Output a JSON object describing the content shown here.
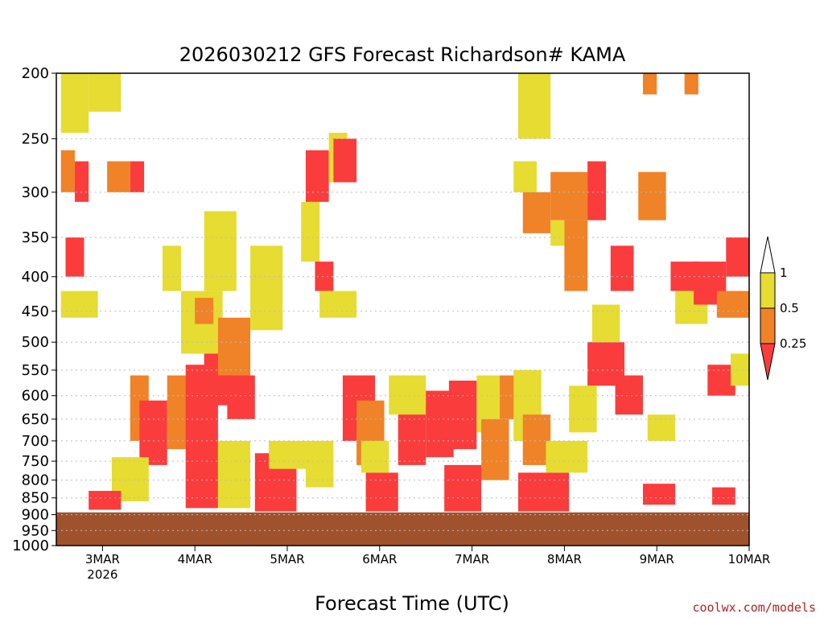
{
  "chart_data": {
    "type": "heatmap",
    "title": "2026030212 GFS Forecast Richardson# KAMA",
    "xlabel": "Forecast Time (UTC)",
    "ylabel": "",
    "y_scale": "log",
    "ylim": [
      1000,
      200
    ],
    "y_ticks": [
      200,
      250,
      300,
      350,
      400,
      450,
      500,
      550,
      600,
      650,
      700,
      750,
      800,
      850,
      900,
      950,
      1000
    ],
    "x_ticks": [
      {
        "label": "3MAR",
        "sub": "2026",
        "day": 3
      },
      {
        "label": "4MAR",
        "sub": "",
        "day": 4
      },
      {
        "label": "5MAR",
        "sub": "",
        "day": 5
      },
      {
        "label": "6MAR",
        "sub": "",
        "day": 6
      },
      {
        "label": "7MAR",
        "sub": "",
        "day": 7
      },
      {
        "label": "8MAR",
        "sub": "",
        "day": 8
      },
      {
        "label": "9MAR",
        "sub": "",
        "day": 9
      },
      {
        "label": "10MAR",
        "sub": "",
        "day": 10
      }
    ],
    "xlim_days": [
      2.5,
      10.0
    ],
    "grid": true,
    "legend": {
      "placement": "right",
      "bins": [
        {
          "label": "1",
          "color": "#ffffff"
        },
        {
          "label": "0.5",
          "color": "#e6dc32"
        },
        {
          "label": "0.25",
          "color": "#f08228"
        },
        {
          "label": "",
          "color": "#fa3c3c"
        }
      ]
    },
    "colors": {
      "ri_lt_025": "#fa3c3c",
      "ri_025_05": "#f08228",
      "ri_05_1": "#e6dc32",
      "ri_gt_1": "#ffffff",
      "terrain": "#a0522d"
    },
    "surface_pressure_hpa": 893,
    "regions": [
      {
        "t": [
          2.55,
          2.85
        ],
        "p": [
          200,
          245
        ],
        "level": "ri_05_1"
      },
      {
        "t": [
          2.85,
          3.2
        ],
        "p": [
          200,
          228
        ],
        "level": "ri_05_1"
      },
      {
        "t": [
          2.55,
          2.7
        ],
        "p": [
          260,
          300
        ],
        "level": "ri_025_05"
      },
      {
        "t": [
          2.7,
          2.85
        ],
        "p": [
          270,
          310
        ],
        "level": "ri_lt_025"
      },
      {
        "t": [
          2.6,
          2.8
        ],
        "p": [
          350,
          400
        ],
        "level": "ri_lt_025"
      },
      {
        "t": [
          2.55,
          2.95
        ],
        "p": [
          420,
          460
        ],
        "level": "ri_05_1"
      },
      {
        "t": [
          3.05,
          3.3
        ],
        "p": [
          270,
          300
        ],
        "level": "ri_025_05"
      },
      {
        "t": [
          3.3,
          3.45
        ],
        "p": [
          270,
          300
        ],
        "level": "ri_lt_025"
      },
      {
        "t": [
          3.3,
          3.5
        ],
        "p": [
          560,
          700
        ],
        "level": "ri_025_05"
      },
      {
        "t": [
          3.4,
          3.7
        ],
        "p": [
          610,
          760
        ],
        "level": "ri_lt_025"
      },
      {
        "t": [
          3.1,
          3.5
        ],
        "p": [
          740,
          860
        ],
        "level": "ri_05_1"
      },
      {
        "t": [
          2.85,
          3.2
        ],
        "p": [
          830,
          885
        ],
        "level": "ri_lt_025"
      },
      {
        "t": [
          3.65,
          3.85
        ],
        "p": [
          360,
          420
        ],
        "level": "ri_05_1"
      },
      {
        "t": [
          3.7,
          4.2
        ],
        "p": [
          560,
          720
        ],
        "level": "ri_025_05"
      },
      {
        "t": [
          3.9,
          4.25
        ],
        "p": [
          540,
          880
        ],
        "level": "ri_lt_025"
      },
      {
        "t": [
          4.1,
          4.4
        ],
        "p": [
          520,
          620
        ],
        "level": "ri_lt_025"
      },
      {
        "t": [
          3.85,
          4.3
        ],
        "p": [
          420,
          520
        ],
        "level": "ri_05_1"
      },
      {
        "t": [
          4.0,
          4.2
        ],
        "p": [
          430,
          470
        ],
        "level": "ri_025_05"
      },
      {
        "t": [
          4.25,
          4.6
        ],
        "p": [
          460,
          560
        ],
        "level": "ri_025_05"
      },
      {
        "t": [
          4.35,
          4.65
        ],
        "p": [
          560,
          650
        ],
        "level": "ri_lt_025"
      },
      {
        "t": [
          4.6,
          4.95
        ],
        "p": [
          360,
          480
        ],
        "level": "ri_05_1"
      },
      {
        "t": [
          4.1,
          4.45
        ],
        "p": [
          320,
          420
        ],
        "level": "ri_05_1"
      },
      {
        "t": [
          4.25,
          4.6
        ],
        "p": [
          700,
          880
        ],
        "level": "ri_05_1"
      },
      {
        "t": [
          4.65,
          5.1
        ],
        "p": [
          730,
          890
        ],
        "level": "ri_lt_025"
      },
      {
        "t": [
          4.8,
          5.2
        ],
        "p": [
          700,
          770
        ],
        "level": "ri_05_1"
      },
      {
        "t": [
          5.15,
          5.35
        ],
        "p": [
          310,
          380
        ],
        "level": "ri_05_1"
      },
      {
        "t": [
          5.2,
          5.45
        ],
        "p": [
          260,
          310
        ],
        "level": "ri_lt_025"
      },
      {
        "t": [
          5.45,
          5.65
        ],
        "p": [
          245,
          290
        ],
        "level": "ri_05_1"
      },
      {
        "t": [
          5.5,
          5.75
        ],
        "p": [
          250,
          290
        ],
        "level": "ri_lt_025"
      },
      {
        "t": [
          5.3,
          5.5
        ],
        "p": [
          380,
          420
        ],
        "level": "ri_lt_025"
      },
      {
        "t": [
          5.35,
          5.75
        ],
        "p": [
          420,
          460
        ],
        "level": "ri_05_1"
      },
      {
        "t": [
          5.2,
          5.5
        ],
        "p": [
          700,
          820
        ],
        "level": "ri_05_1"
      },
      {
        "t": [
          5.6,
          5.95
        ],
        "p": [
          560,
          700
        ],
        "level": "ri_lt_025"
      },
      {
        "t": [
          5.75,
          6.05
        ],
        "p": [
          610,
          760
        ],
        "level": "ri_025_05"
      },
      {
        "t": [
          5.85,
          6.2
        ],
        "p": [
          780,
          890
        ],
        "level": "ri_lt_025"
      },
      {
        "t": [
          5.8,
          6.1
        ],
        "p": [
          700,
          780
        ],
        "level": "ri_05_1"
      },
      {
        "t": [
          6.2,
          6.5
        ],
        "p": [
          620,
          760
        ],
        "level": "ri_lt_025"
      },
      {
        "t": [
          6.1,
          6.5
        ],
        "p": [
          560,
          640
        ],
        "level": "ri_05_1"
      },
      {
        "t": [
          6.5,
          6.8
        ],
        "p": [
          590,
          740
        ],
        "level": "ri_lt_025"
      },
      {
        "t": [
          6.75,
          7.05
        ],
        "p": [
          570,
          720
        ],
        "level": "ri_lt_025"
      },
      {
        "t": [
          6.7,
          7.1
        ],
        "p": [
          760,
          890
        ],
        "level": "ri_lt_025"
      },
      {
        "t": [
          7.05,
          7.3
        ],
        "p": [
          560,
          680
        ],
        "level": "ri_05_1"
      },
      {
        "t": [
          7.1,
          7.4
        ],
        "p": [
          650,
          800
        ],
        "level": "ri_025_05"
      },
      {
        "t": [
          7.3,
          7.55
        ],
        "p": [
          560,
          650
        ],
        "level": "ri_025_05"
      },
      {
        "t": [
          7.5,
          7.85
        ],
        "p": [
          200,
          250
        ],
        "level": "ri_05_1"
      },
      {
        "t": [
          7.45,
          7.7
        ],
        "p": [
          270,
          300
        ],
        "level": "ri_05_1"
      },
      {
        "t": [
          7.55,
          7.85
        ],
        "p": [
          300,
          345
        ],
        "level": "ri_025_05"
      },
      {
        "t": [
          7.85,
          8.25
        ],
        "p": [
          280,
          330
        ],
        "level": "ri_025_05"
      },
      {
        "t": [
          7.85,
          8.05
        ],
        "p": [
          330,
          360
        ],
        "level": "ri_05_1"
      },
      {
        "t": [
          8.25,
          8.45
        ],
        "p": [
          270,
          330
        ],
        "level": "ri_lt_025"
      },
      {
        "t": [
          8.0,
          8.25
        ],
        "p": [
          330,
          420
        ],
        "level": "ri_025_05"
      },
      {
        "t": [
          7.45,
          7.75
        ],
        "p": [
          550,
          700
        ],
        "level": "ri_05_1"
      },
      {
        "t": [
          7.55,
          7.85
        ],
        "p": [
          640,
          760
        ],
        "level": "ri_025_05"
      },
      {
        "t": [
          7.5,
          8.05
        ],
        "p": [
          780,
          890
        ],
        "level": "ri_lt_025"
      },
      {
        "t": [
          7.8,
          8.25
        ],
        "p": [
          700,
          780
        ],
        "level": "ri_05_1"
      },
      {
        "t": [
          8.25,
          8.65
        ],
        "p": [
          500,
          580
        ],
        "level": "ri_lt_025"
      },
      {
        "t": [
          8.3,
          8.6
        ],
        "p": [
          440,
          500
        ],
        "level": "ri_05_1"
      },
      {
        "t": [
          8.55,
          8.85
        ],
        "p": [
          560,
          640
        ],
        "level": "ri_lt_025"
      },
      {
        "t": [
          8.05,
          8.35
        ],
        "p": [
          580,
          680
        ],
        "level": "ri_05_1"
      },
      {
        "t": [
          8.5,
          8.75
        ],
        "p": [
          360,
          420
        ],
        "level": "ri_lt_025"
      },
      {
        "t": [
          8.8,
          9.1
        ],
        "p": [
          280,
          330
        ],
        "level": "ri_025_05"
      },
      {
        "t": [
          8.9,
          9.2
        ],
        "p": [
          640,
          700
        ],
        "level": "ri_05_1"
      },
      {
        "t": [
          8.85,
          9.2
        ],
        "p": [
          810,
          870
        ],
        "level": "ri_lt_025"
      },
      {
        "t": [
          9.15,
          9.45
        ],
        "p": [
          380,
          420
        ],
        "level": "ri_lt_025"
      },
      {
        "t": [
          9.2,
          9.55
        ],
        "p": [
          420,
          470
        ],
        "level": "ri_05_1"
      },
      {
        "t": [
          9.4,
          9.75
        ],
        "p": [
          380,
          440
        ],
        "level": "ri_lt_025"
      },
      {
        "t": [
          9.65,
          10.0
        ],
        "p": [
          420,
          460
        ],
        "level": "ri_025_05"
      },
      {
        "t": [
          9.55,
          9.85
        ],
        "p": [
          540,
          600
        ],
        "level": "ri_lt_025"
      },
      {
        "t": [
          9.75,
          10.0
        ],
        "p": [
          350,
          400
        ],
        "level": "ri_lt_025"
      },
      {
        "t": [
          9.8,
          10.0
        ],
        "p": [
          520,
          580
        ],
        "level": "ri_05_1"
      },
      {
        "t": [
          9.6,
          9.85
        ],
        "p": [
          820,
          870
        ],
        "level": "ri_lt_025"
      },
      {
        "t": [
          8.85,
          9.0
        ],
        "p": [
          200,
          215
        ],
        "level": "ri_025_05"
      },
      {
        "t": [
          9.3,
          9.45
        ],
        "p": [
          200,
          215
        ],
        "level": "ri_025_05"
      }
    ]
  },
  "footer": {
    "credit": "coolwx.com/models"
  }
}
